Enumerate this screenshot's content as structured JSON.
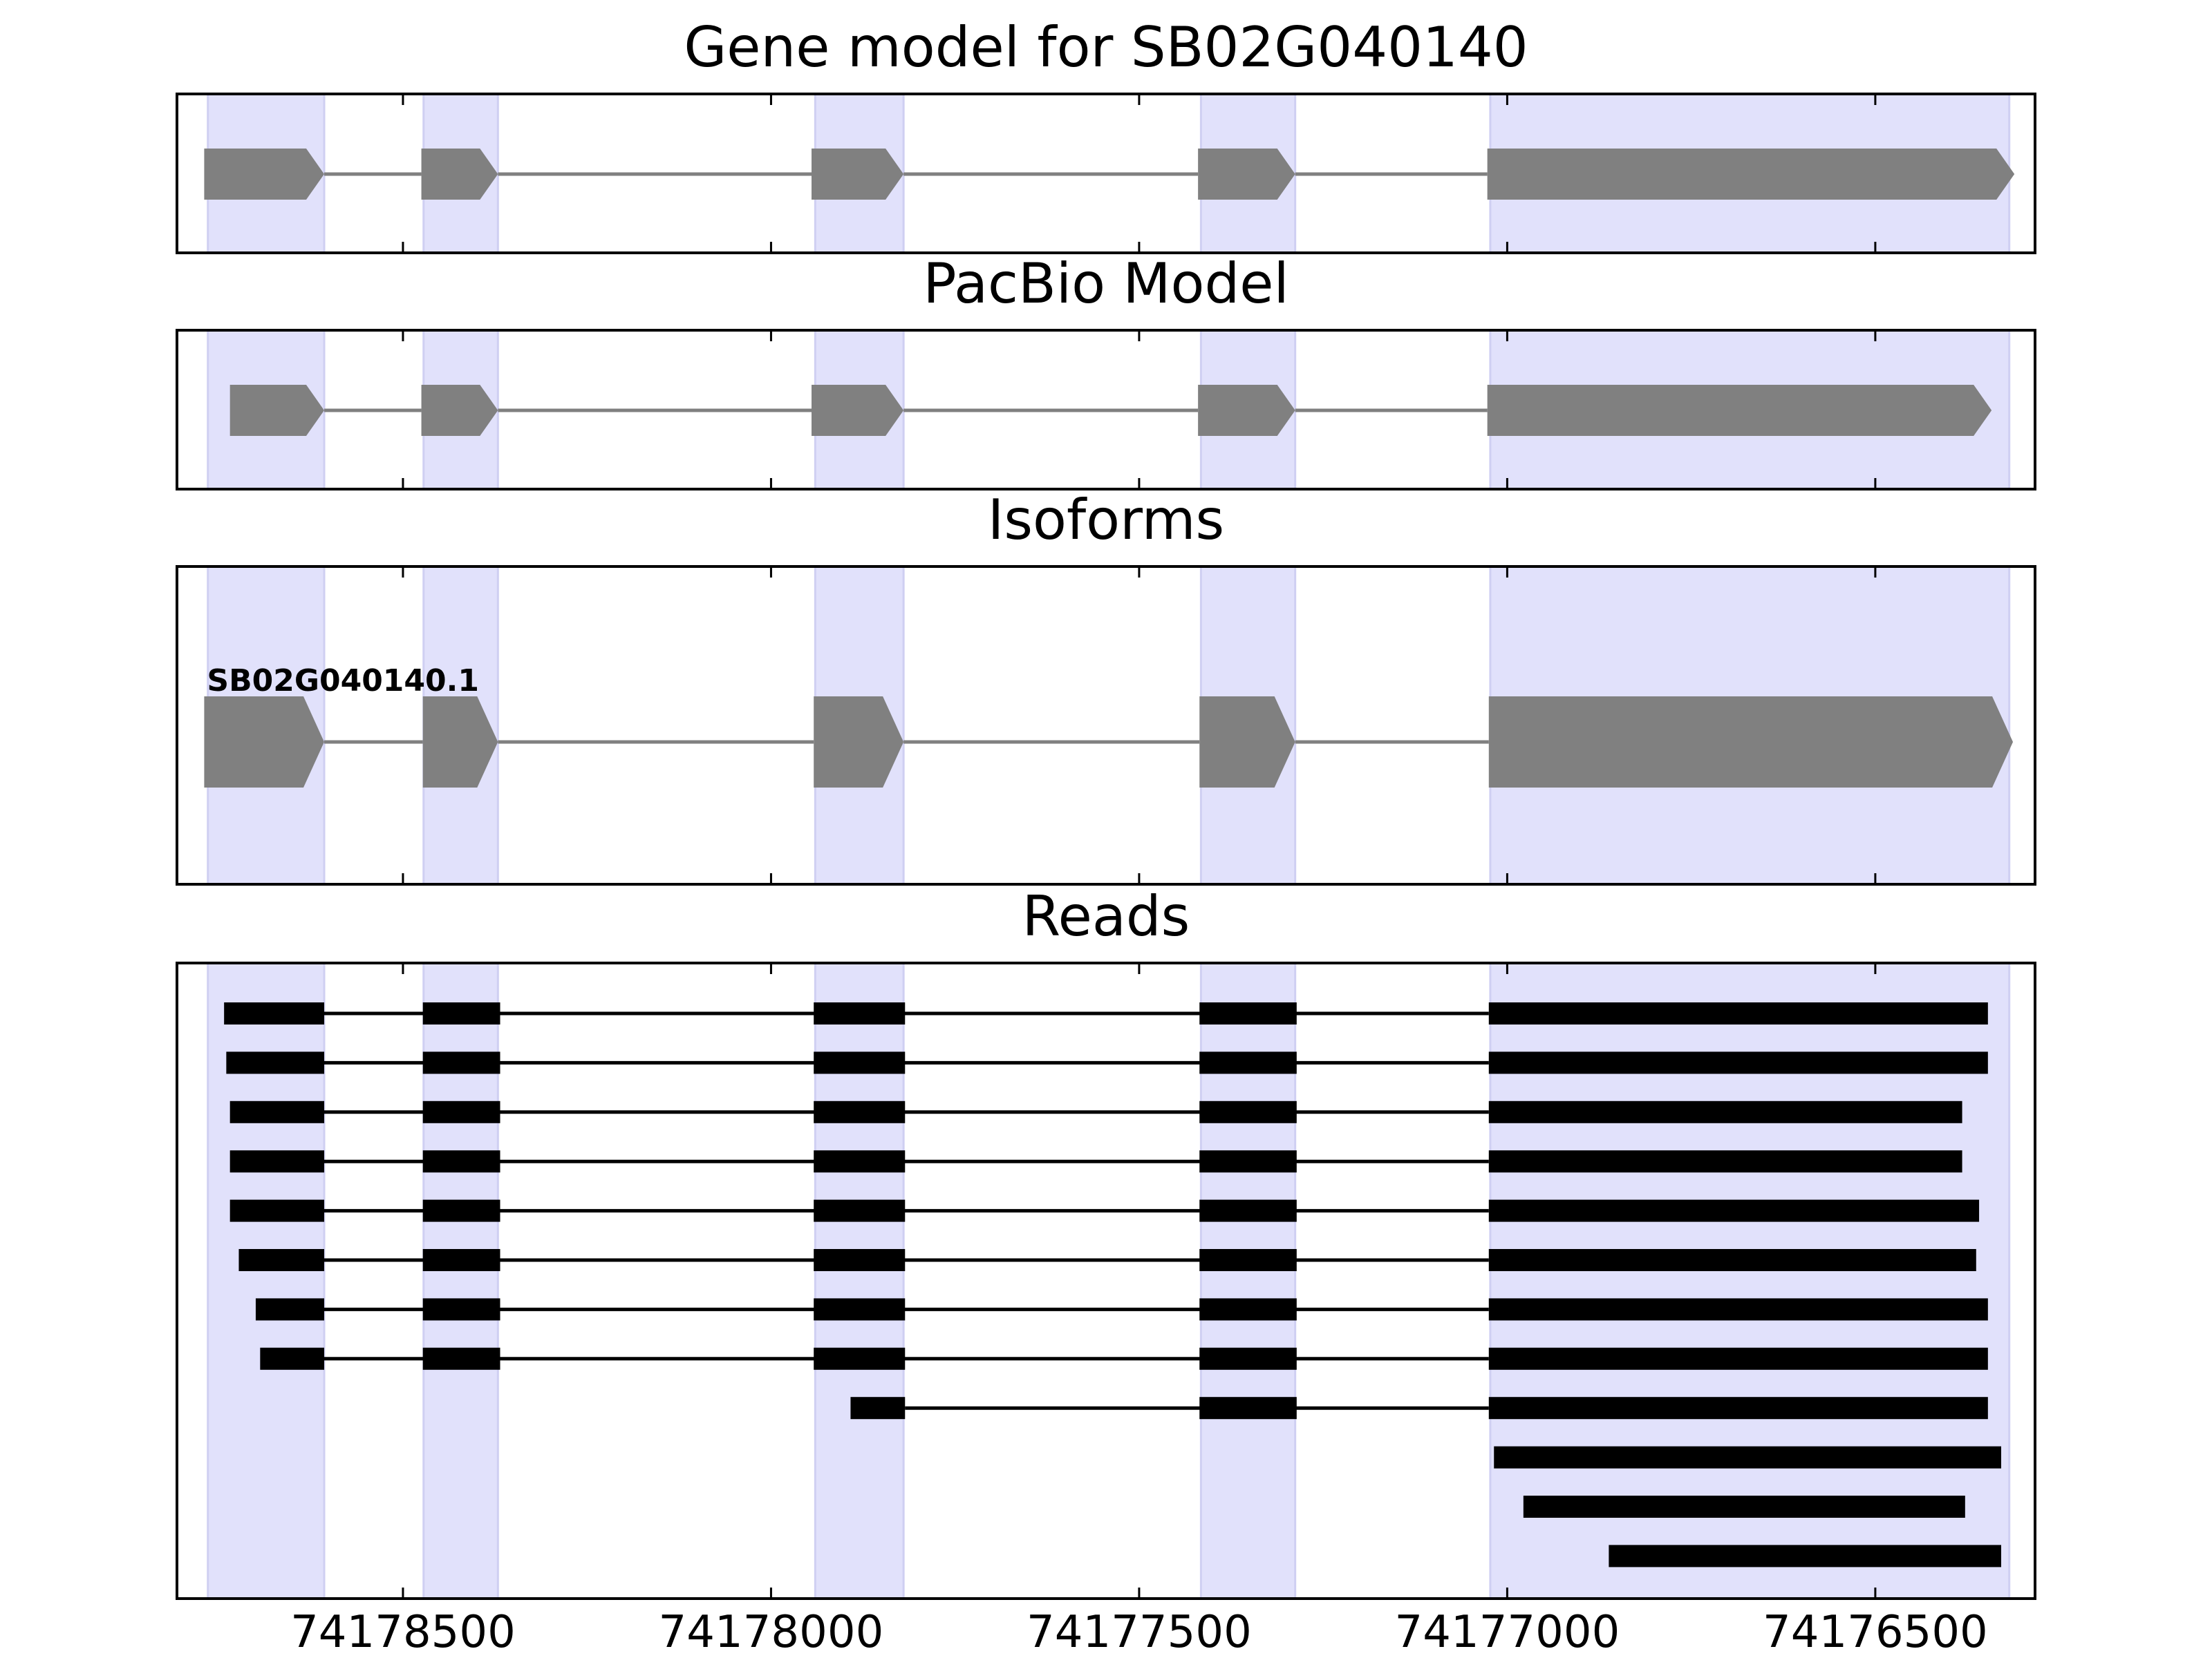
{
  "figure": {
    "panels": [
      {
        "title": "Gene model for SB02G040140"
      },
      {
        "title": "PacBio Model"
      },
      {
        "title": "Isoforms"
      },
      {
        "title": "Reads"
      }
    ],
    "ticks": [
      {
        "label": "74178500"
      },
      {
        "label": "74178000"
      },
      {
        "label": "74177500"
      },
      {
        "label": "74177000"
      },
      {
        "label": "74176500"
      }
    ]
  },
  "colors": {
    "exon_band": "#e1e1fb",
    "model_fill": "#808080",
    "read_fill": "#000000",
    "axes": "#000000"
  },
  "chart_data": {
    "type": "gene-structure",
    "x_axis_reversed": true,
    "xlim": [
      74178807,
      74176283
    ],
    "tick_values": [
      74178500,
      74178000,
      74177500,
      74177000,
      74176500
    ],
    "exon_bands": [
      [
        74178765,
        74178607
      ],
      [
        74178472,
        74178371
      ],
      [
        74177940,
        74177820
      ],
      [
        74177416,
        74177288
      ],
      [
        74177023,
        74176318
      ]
    ],
    "gene_model": {
      "strand": "-",
      "exons": [
        [
          74178770,
          74178607
        ],
        [
          74178475,
          74178371
        ],
        [
          74177945,
          74177820
        ],
        [
          74177420,
          74177288
        ],
        [
          74177027,
          74176311
        ]
      ]
    },
    "pacbio_model": {
      "strand": "-",
      "exons": [
        [
          74178735,
          74178607
        ],
        [
          74178475,
          74178371
        ],
        [
          74177945,
          74177820
        ],
        [
          74177420,
          74177288
        ],
        [
          74177027,
          74176342
        ]
      ]
    },
    "isoforms": [
      {
        "name": "SB02G040140.1",
        "strand": "-",
        "exons": [
          [
            74178770,
            74178607
          ],
          [
            74178473,
            74178371
          ],
          [
            74177942,
            74177820
          ],
          [
            74177418,
            74177288
          ],
          [
            74177025,
            74176313
          ]
        ]
      }
    ],
    "reads": [
      [
        [
          74178743,
          74178607
        ],
        [
          74178473,
          74178368
        ],
        [
          74177942,
          74177818
        ],
        [
          74177418,
          74177286
        ],
        [
          74177025,
          74176347
        ]
      ],
      [
        [
          74178740,
          74178607
        ],
        [
          74178473,
          74178368
        ],
        [
          74177942,
          74177818
        ],
        [
          74177418,
          74177286
        ],
        [
          74177025,
          74176347
        ]
      ],
      [
        [
          74178735,
          74178607
        ],
        [
          74178473,
          74178368
        ],
        [
          74177942,
          74177818
        ],
        [
          74177418,
          74177286
        ],
        [
          74177025,
          74176382
        ]
      ],
      [
        [
          74178735,
          74178607
        ],
        [
          74178473,
          74178368
        ],
        [
          74177942,
          74177818
        ],
        [
          74177418,
          74177286
        ],
        [
          74177025,
          74176382
        ]
      ],
      [
        [
          74178735,
          74178607
        ],
        [
          74178473,
          74178368
        ],
        [
          74177942,
          74177818
        ],
        [
          74177418,
          74177286
        ],
        [
          74177025,
          74176359
        ]
      ],
      [
        [
          74178723,
          74178607
        ],
        [
          74178473,
          74178368
        ],
        [
          74177942,
          74177818
        ],
        [
          74177418,
          74177286
        ],
        [
          74177025,
          74176363
        ]
      ],
      [
        [
          74178700,
          74178607
        ],
        [
          74178473,
          74178368
        ],
        [
          74177942,
          74177818
        ],
        [
          74177418,
          74177286
        ],
        [
          74177025,
          74176347
        ]
      ],
      [
        [
          74178694,
          74178607
        ],
        [
          74178473,
          74178368
        ],
        [
          74177942,
          74177818
        ],
        [
          74177418,
          74177286
        ],
        [
          74177025,
          74176347
        ]
      ],
      [
        [
          74177892,
          74177818
        ],
        [
          74177418,
          74177286
        ],
        [
          74177025,
          74176347
        ]
      ],
      [
        [
          74177018,
          74176329
        ]
      ],
      [
        [
          74176978,
          74176378
        ]
      ],
      [
        [
          74176862,
          74176329
        ]
      ]
    ]
  }
}
